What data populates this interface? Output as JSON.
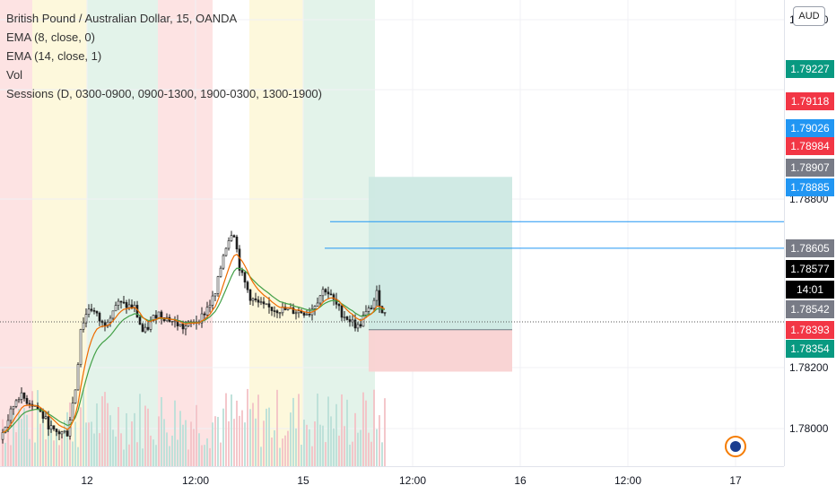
{
  "legend": {
    "title": "British Pound / Australian Dollar, 15, OANDA",
    "ema8": "EMA (8, close, 0)",
    "ema14": "EMA (14, close, 1)",
    "vol": "Vol",
    "sessions": "Sessions (D, 0300-0900, 0900-1300, 1900-0300, 1300-1900)"
  },
  "axis": {
    "currency": "AUD",
    "y_ticks": [
      "1.80000",
      "1.79200",
      "1.78800",
      "1.78200",
      "1.78000"
    ],
    "x_ticks": [
      "12",
      "12:00",
      "15",
      "12:00",
      "16",
      "12:00",
      "17"
    ],
    "price_labels": [
      {
        "text": "1.79227",
        "color": "#089981"
      },
      {
        "text": "1.79118",
        "color": "#f23645"
      },
      {
        "text": "1.79026",
        "color": "#2196f3"
      },
      {
        "text": "1.78984",
        "color": "#f23645"
      },
      {
        "text": "1.78907",
        "color": "#787b86"
      },
      {
        "text": "1.78885",
        "color": "#2196f3"
      },
      {
        "text": "1.78605",
        "color": "#787b86"
      },
      {
        "text": "1.78577",
        "color": "#000000"
      },
      {
        "text": "14:01",
        "color": "#000000"
      },
      {
        "text": "1.78542",
        "color": "#787b86"
      },
      {
        "text": "1.78393",
        "color": "#f23645"
      },
      {
        "text": "1.78354",
        "color": "#089981"
      }
    ]
  },
  "chart_data": {
    "type": "candlestick",
    "title": "British Pound / Australian Dollar, 15, OANDA",
    "ylim": [
      1.7793,
      1.8002
    ],
    "price_levels": {
      "last": 1.78577,
      "horizontal_line_1": 1.79026,
      "horizontal_line_2": 1.78907,
      "take_profit": 1.79227,
      "entry": 1.78542,
      "stop_loss": 1.78354
    },
    "session_colors": {
      "red": "#fde3e3",
      "yellow": "#fdf8dc",
      "green": "#e3f3ea"
    },
    "sessions": [
      {
        "color": "red"
      },
      {
        "color": "yellow"
      },
      {
        "color": "green"
      },
      {
        "color": "red"
      },
      {
        "color": "yellow"
      },
      {
        "color": "green"
      }
    ],
    "candle_up_color": "#1e1e1e",
    "ema8_color": "#ef6c00",
    "ema14_color": "#43a047",
    "position_profit_color": "#cde9e3",
    "position_loss_color": "#f9d2d2",
    "logo_icon": "flag-circle-icon"
  }
}
